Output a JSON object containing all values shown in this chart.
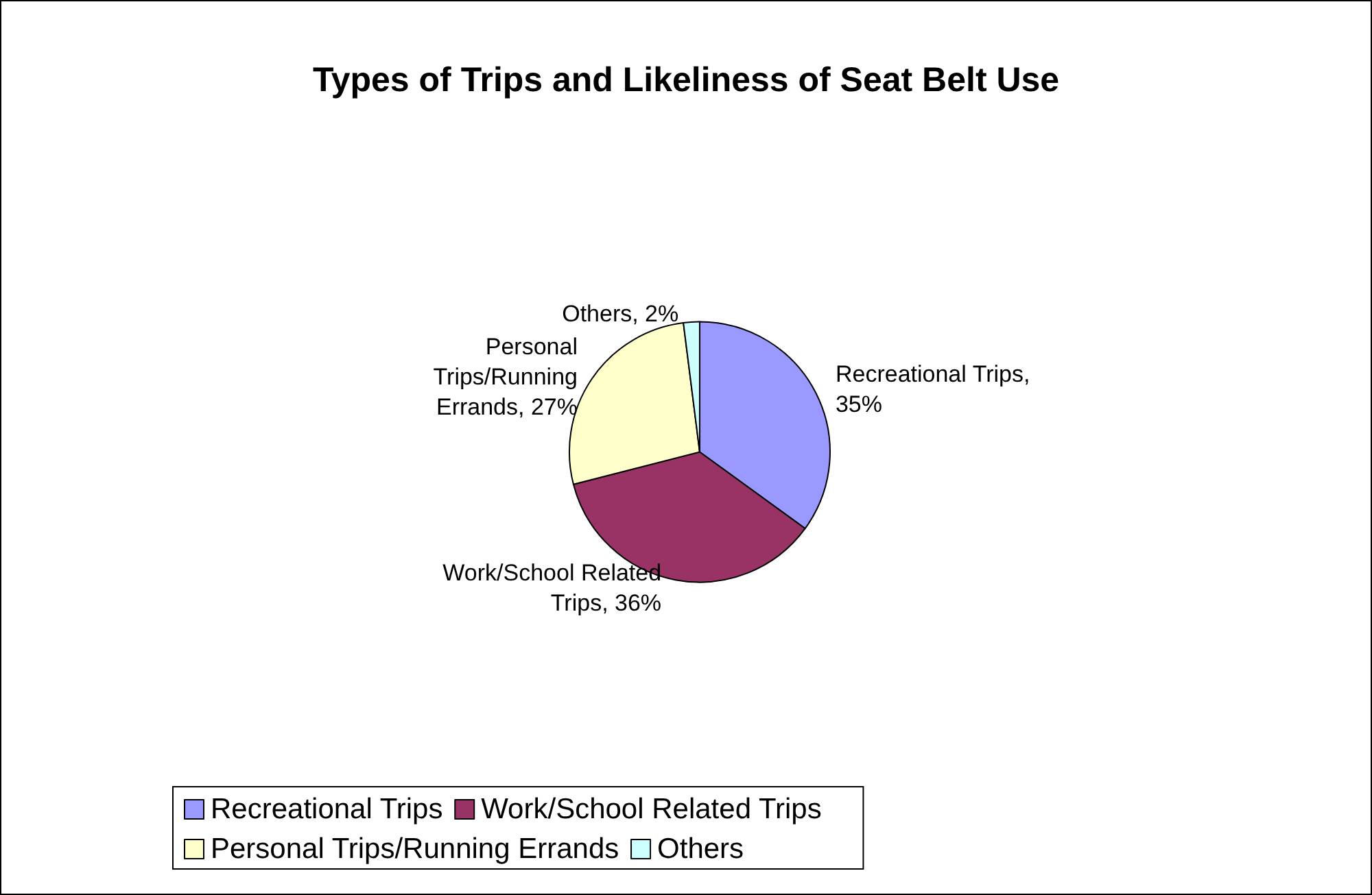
{
  "chart_data": {
    "type": "pie",
    "title": "Types of Trips and Likeliness of Seat Belt Use",
    "categories": [
      "Recreational Trips",
      "Work/School Related Trips",
      "Personal Trips/Running Errands",
      "Others"
    ],
    "values": [
      35,
      36,
      27,
      2
    ],
    "value_labels": [
      "Recreational Trips, 35%",
      "Work/School Related Trips, 36%",
      "Personal Trips/Running Errands, 27%",
      "Others, 2%"
    ],
    "colors": [
      "#9999ff",
      "#993366",
      "#ffffcc",
      "#ccffff"
    ],
    "legend": "bottom"
  }
}
